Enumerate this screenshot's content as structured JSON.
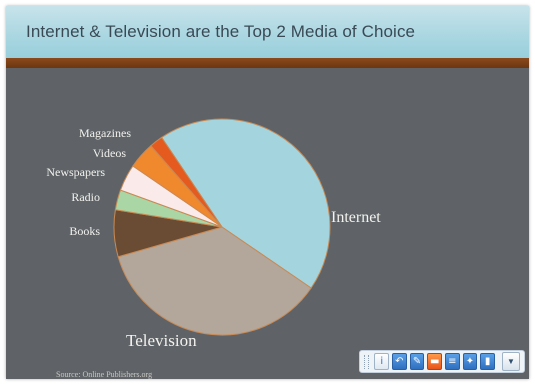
{
  "slide": {
    "title": "Internet & Television are the Top 2 Media of Choice",
    "source": "Source: Online Publishers.org"
  },
  "chart_data": {
    "type": "pie",
    "title": "Internet & Television are the Top 2 Media of Choice",
    "legend": "none",
    "slices": [
      {
        "label": "Internet",
        "value": 44,
        "color": "#a4d5de"
      },
      {
        "label": "Television",
        "value": 36,
        "color": "#b3a69b"
      },
      {
        "label": "Books",
        "value": 7,
        "color": "#6a4c34"
      },
      {
        "label": "Radio",
        "value": 3,
        "color": "#a9d6a4"
      },
      {
        "label": "Newspapers",
        "value": 4,
        "color": "#fbeaea"
      },
      {
        "label": "Videos",
        "value": 4,
        "color": "#f0882e"
      },
      {
        "label": "Magazines",
        "value": 2,
        "color": "#e45a1f"
      }
    ],
    "slice_border_color": "#c98a55"
  },
  "toolbar": {
    "icons": [
      "info-icon",
      "undo-icon",
      "edit-icon",
      "comment-icon",
      "notes-icon",
      "tweet-icon",
      "chart-icon"
    ],
    "dropdown_icon": "chevron-down-icon"
  }
}
